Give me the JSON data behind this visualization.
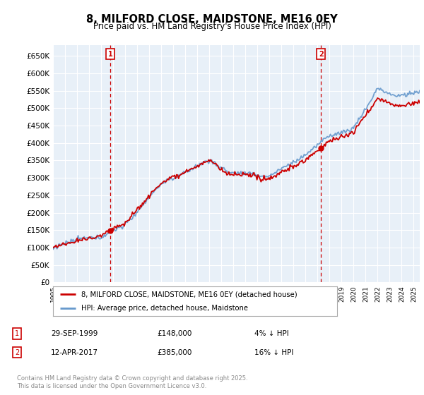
{
  "title": "8, MILFORD CLOSE, MAIDSTONE, ME16 0EY",
  "subtitle": "Price paid vs. HM Land Registry's House Price Index (HPI)",
  "ylabel_ticks": [
    "£0",
    "£50K",
    "£100K",
    "£150K",
    "£200K",
    "£250K",
    "£300K",
    "£350K",
    "£400K",
    "£450K",
    "£500K",
    "£550K",
    "£600K",
    "£650K"
  ],
  "ylim": [
    0,
    680000
  ],
  "xlim_start": 1995.0,
  "xlim_end": 2025.5,
  "marker1_x": 1999.75,
  "marker1_y": 148000,
  "marker1_label": "1",
  "marker1_date": "29-SEP-1999",
  "marker1_price": "£148,000",
  "marker1_note": "4% ↓ HPI",
  "marker2_x": 2017.28,
  "marker2_y": 385000,
  "marker2_label": "2",
  "marker2_date": "12-APR-2017",
  "marker2_price": "£385,000",
  "marker2_note": "16% ↓ HPI",
  "legend_house": "8, MILFORD CLOSE, MAIDSTONE, ME16 0EY (detached house)",
  "legend_hpi": "HPI: Average price, detached house, Maidstone",
  "copyright_text": "Contains HM Land Registry data © Crown copyright and database right 2025.\nThis data is licensed under the Open Government Licence v3.0.",
  "house_color": "#cc0000",
  "hpi_color": "#6699cc",
  "bg_color": "#ffffff",
  "chart_bg_color": "#e8f0f8",
  "grid_color": "#ffffff"
}
